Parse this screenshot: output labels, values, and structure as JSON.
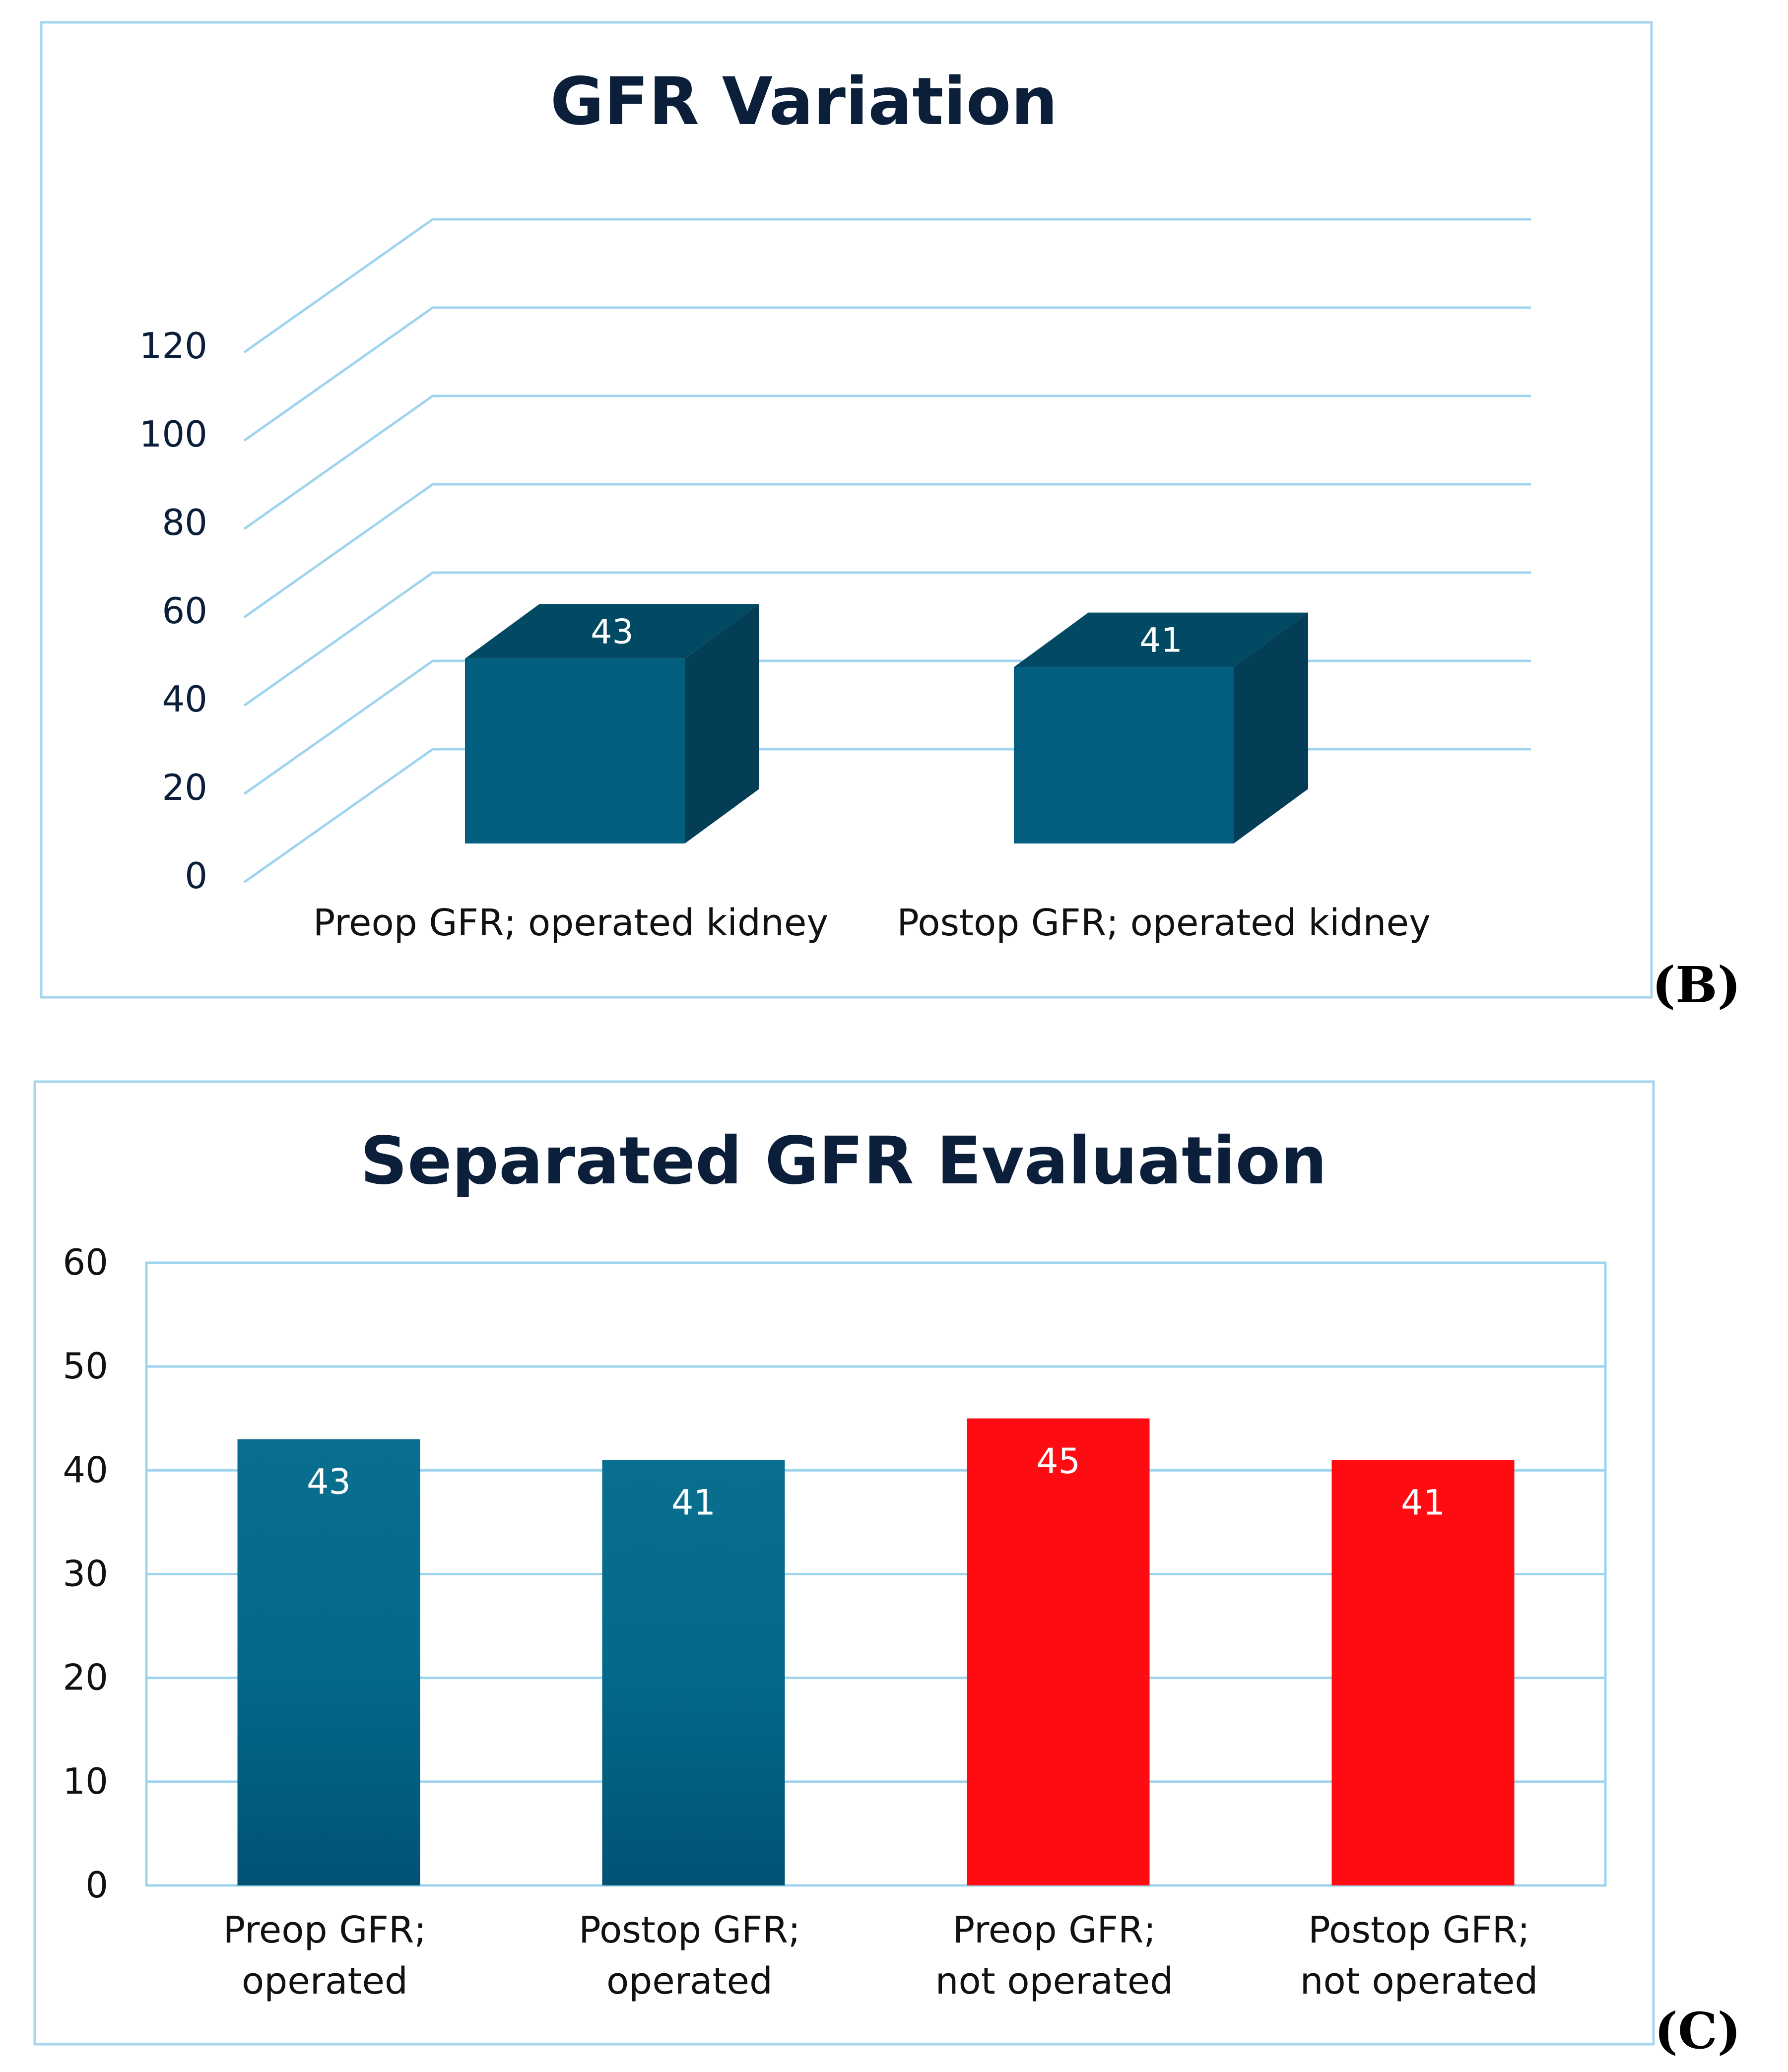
{
  "figure_labels": {
    "b": "(B)",
    "c": "(C)"
  },
  "colors": {
    "teal_bar": "#025f80",
    "teal_side": "#033d56",
    "teal_top": "#024a63",
    "red_bar": "#ff0b12",
    "grid": "#9fd4ee",
    "frame": "#a7d6ee",
    "text_dark": "#0b1f3a",
    "label_white": "#ffffff"
  },
  "chart_data": [
    {
      "id": "B",
      "type": "bar",
      "style": "3d",
      "title": "GFR Variation",
      "categories": [
        "Preop GFR; operated kidney",
        "Postop GFR; operated kidney"
      ],
      "values": [
        43,
        41
      ],
      "data_labels": [
        "43",
        "41"
      ],
      "ylim": [
        0,
        120
      ],
      "yticks": [
        0,
        20,
        40,
        60,
        80,
        100,
        120
      ],
      "xlabel": "",
      "ylabel": "",
      "grid": true,
      "legend": "none"
    },
    {
      "id": "C",
      "type": "bar",
      "title": "Separated GFR Evaluation",
      "categories": [
        [
          "Preop GFR;",
          "operated"
        ],
        [
          "Postop GFR;",
          "operated"
        ],
        [
          "Preop GFR;",
          "not operated"
        ],
        [
          "Postop GFR;",
          "not operated"
        ]
      ],
      "values": [
        43,
        41,
        45,
        41
      ],
      "data_labels": [
        "43",
        "41",
        "45",
        "41"
      ],
      "bar_colors": [
        "teal",
        "teal",
        "red",
        "red"
      ],
      "ylim": [
        0,
        60
      ],
      "yticks": [
        0,
        10,
        20,
        30,
        40,
        50,
        60
      ],
      "xlabel": "",
      "ylabel": "",
      "grid": true,
      "legend": "none"
    }
  ]
}
